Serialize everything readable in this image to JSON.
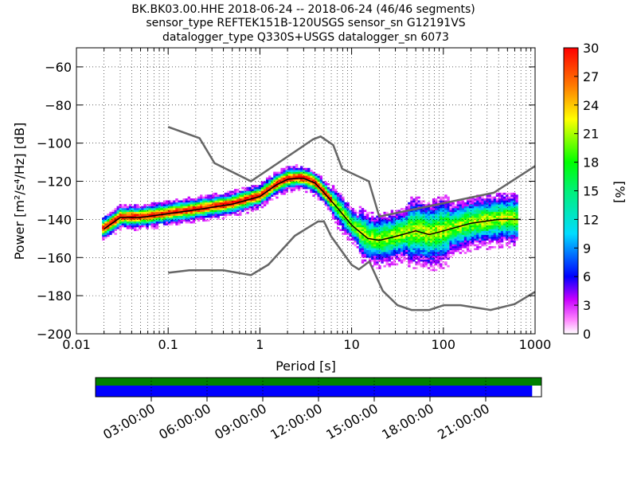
{
  "chart_data": {
    "type": "heatmap",
    "title": [
      "BK.BK03.00.HHE   2018-06-24 -- 2018-06-24  (46/46 segments)",
      "sensor_type REFTEK151B-120USGS sensor_sn G12191VS",
      "datalogger_type Q330S+USGS datalogger_sn 6073"
    ],
    "xlabel": "Period [s]",
    "ylabel": "Power [m²/s⁴/Hz] [dB]",
    "xscale": "log",
    "xlim": [
      0.01,
      1000
    ],
    "ylim": [
      -200,
      -50
    ],
    "x_ticks": [
      {
        "value": 0.01,
        "label": "0.01"
      },
      {
        "value": 0.1,
        "label": "0.1"
      },
      {
        "value": 1,
        "label": "1"
      },
      {
        "value": 10,
        "label": "10"
      },
      {
        "value": 100,
        "label": "100"
      },
      {
        "value": 1000,
        "label": "1000"
      }
    ],
    "y_ticks": [
      {
        "value": -60,
        "label": "−60"
      },
      {
        "value": -80,
        "label": "−80"
      },
      {
        "value": -100,
        "label": "−100"
      },
      {
        "value": -120,
        "label": "−120"
      },
      {
        "value": -140,
        "label": "−140"
      },
      {
        "value": -160,
        "label": "−160"
      },
      {
        "value": -180,
        "label": "−180"
      },
      {
        "value": -200,
        "label": "−200"
      }
    ],
    "grid": true,
    "colorbar": {
      "label": "[%]",
      "range": [
        0,
        30
      ],
      "ticks": [
        "0",
        "3",
        "6",
        "9",
        "12",
        "15",
        "18",
        "21",
        "24",
        "27",
        "30"
      ]
    },
    "nhnm": [
      [
        0.1,
        -91.5
      ],
      [
        0.22,
        -97.4
      ],
      [
        0.32,
        -110.5
      ],
      [
        0.8,
        -120
      ],
      [
        3.8,
        -98
      ],
      [
        4.6,
        -96.5
      ],
      [
        6.3,
        -101
      ],
      [
        7.9,
        -113.5
      ],
      [
        15.4,
        -120
      ],
      [
        20,
        -138.5
      ],
      [
        354.8,
        -126
      ],
      [
        1000,
        -112
      ]
    ],
    "nlnm": [
      [
        0.1,
        -168
      ],
      [
        0.17,
        -166.7
      ],
      [
        0.4,
        -166.7
      ],
      [
        0.8,
        -169.2
      ],
      [
        1.24,
        -163.7
      ],
      [
        2.4,
        -148.6
      ],
      [
        4.3,
        -141.1
      ],
      [
        5,
        -141.1
      ],
      [
        6,
        -149
      ],
      [
        10,
        -163.8
      ],
      [
        12,
        -166.2
      ],
      [
        15.6,
        -162.1
      ],
      [
        21.9,
        -177.5
      ],
      [
        31.6,
        -185
      ],
      [
        45,
        -187.5
      ],
      [
        70,
        -187.5
      ],
      [
        101,
        -185
      ],
      [
        154,
        -185
      ],
      [
        328,
        -187.5
      ],
      [
        600,
        -184.4
      ],
      [
        1000,
        -178
      ]
    ],
    "mean": [
      [
        0.02,
        -145
      ],
      [
        0.03,
        -139
      ],
      [
        0.05,
        -139
      ],
      [
        0.1,
        -137
      ],
      [
        0.2,
        -135
      ],
      [
        0.5,
        -132
      ],
      [
        1,
        -128
      ],
      [
        1.5,
        -122
      ],
      [
        2,
        -119
      ],
      [
        2.5,
        -118.5
      ],
      [
        3,
        -118.5
      ],
      [
        4,
        -121
      ],
      [
        5,
        -126
      ],
      [
        7,
        -134
      ],
      [
        10,
        -143
      ],
      [
        15,
        -150
      ],
      [
        20,
        -151
      ],
      [
        30,
        -149
      ],
      [
        50,
        -146
      ],
      [
        70,
        -148
      ],
      [
        100,
        -146
      ],
      [
        200,
        -142
      ],
      [
        400,
        -140
      ],
      [
        700,
        -140
      ]
    ],
    "time_axis": {
      "labels": [
        "03:00:00",
        "06:00:00",
        "09:00:00",
        "12:00:00",
        "15:00:00",
        "18:00:00",
        "21:00:00"
      ],
      "hours": [
        3,
        6,
        9,
        12,
        15,
        18,
        21
      ],
      "range_hours": [
        0,
        24
      ],
      "coverage_data_hours": [
        0,
        24
      ],
      "coverage_gaps_hours": [
        0,
        23.5
      ],
      "color_data": "#008000",
      "color_gaps": "#0000ff"
    }
  },
  "colors": {
    "noise_model": "#666666",
    "mean": "#000000",
    "grid": "#000000"
  }
}
